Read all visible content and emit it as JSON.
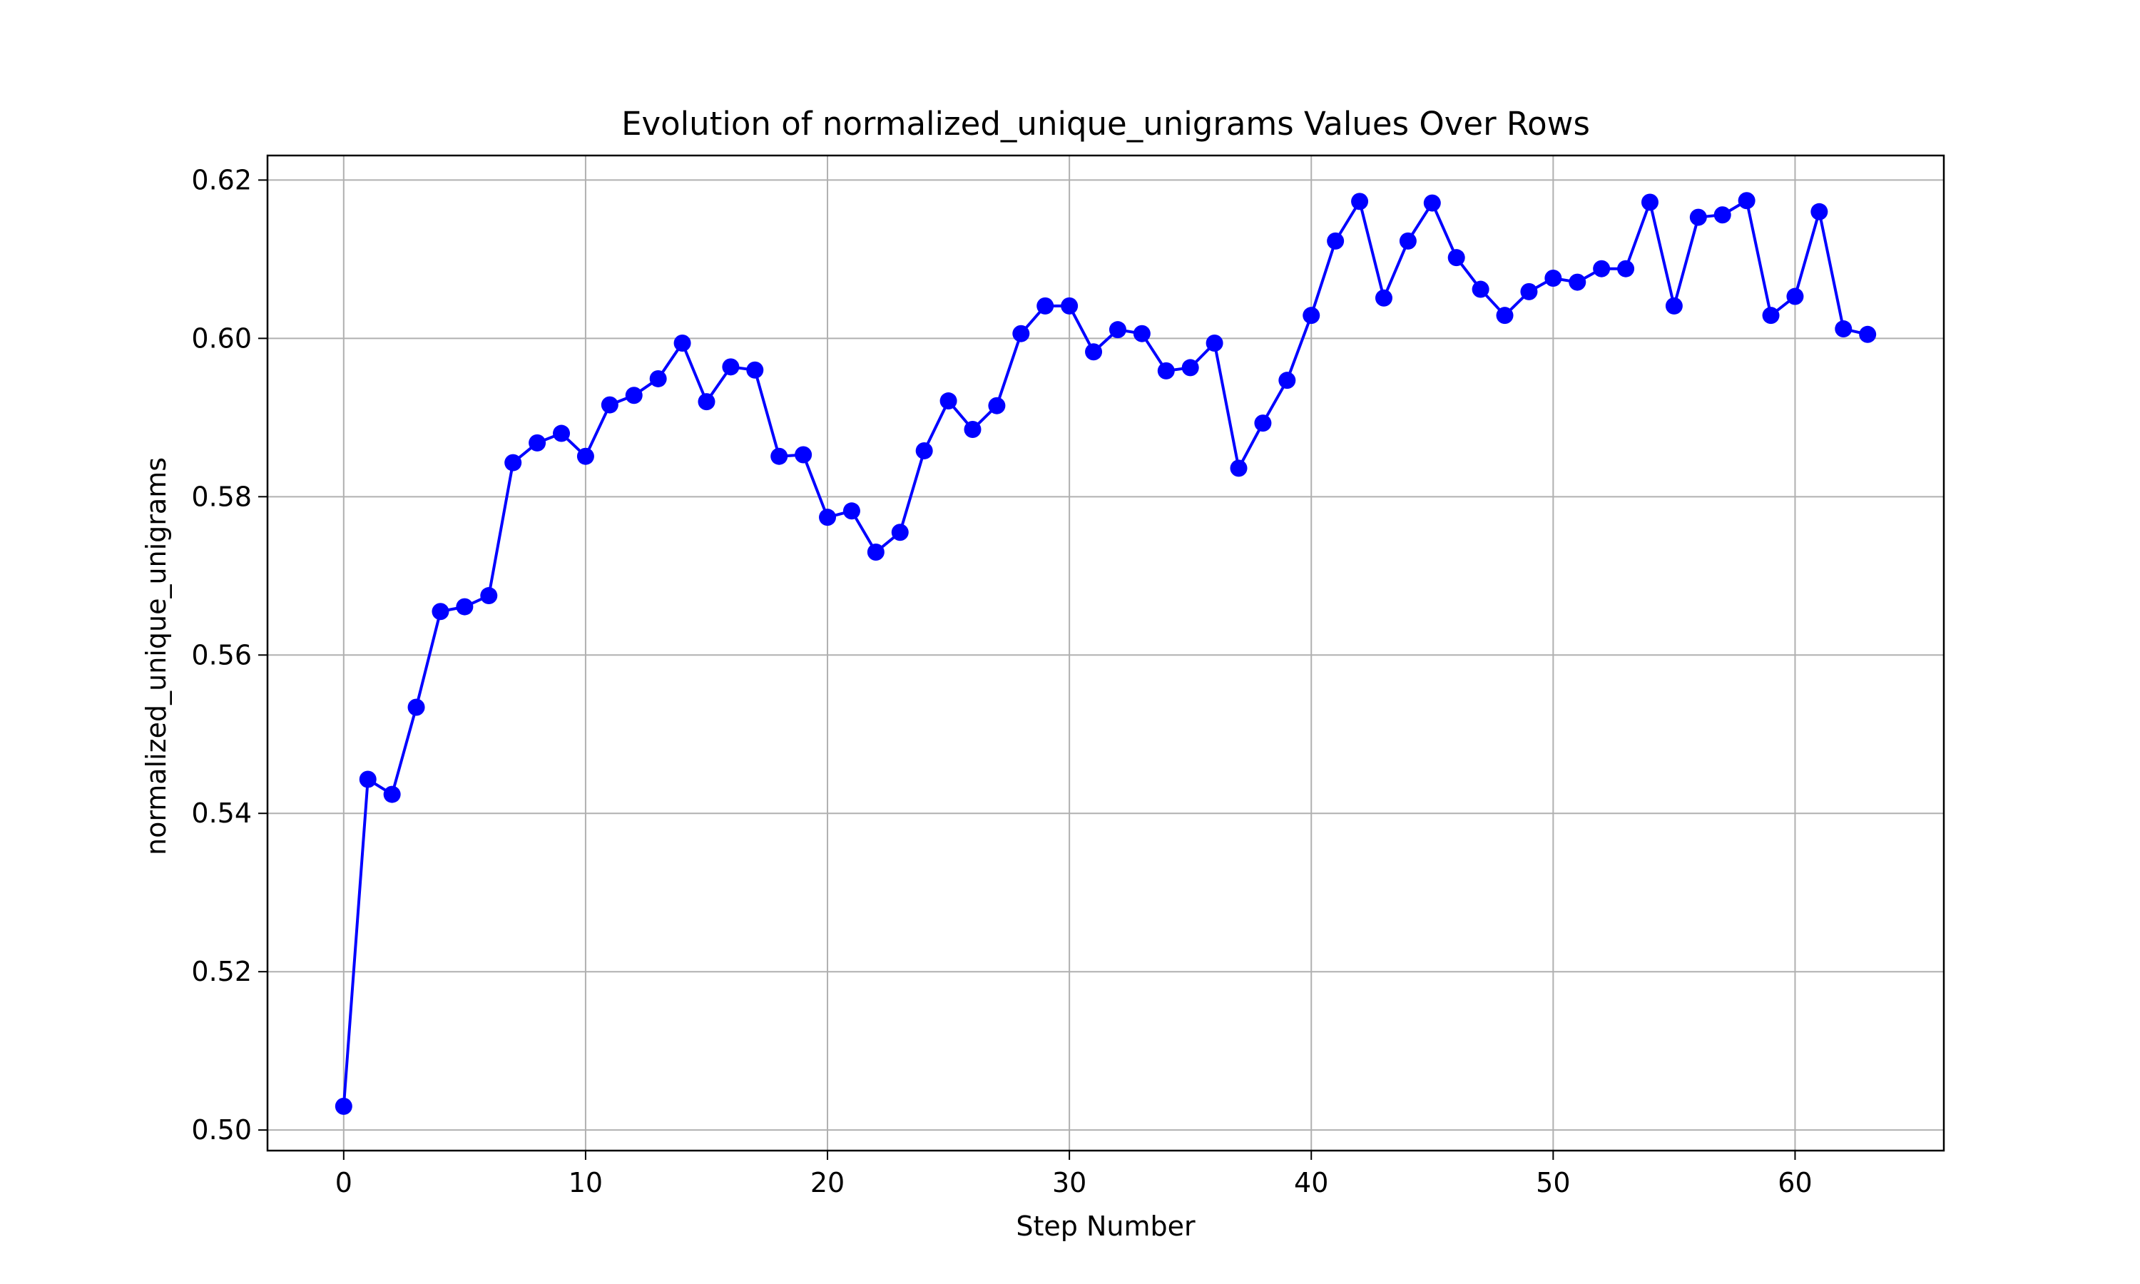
{
  "chart_data": {
    "type": "line",
    "title": "Evolution of normalized_unique_unigrams Values Over Rows",
    "xlabel": "Step Number",
    "ylabel": "normalized_unique_unigrams",
    "xlim": [
      -3.15,
      66.15
    ],
    "ylim": [
      0.4974,
      0.6231
    ],
    "xticks": [
      0,
      10,
      20,
      30,
      40,
      50,
      60
    ],
    "yticks": [
      0.5,
      0.52,
      0.54,
      0.56,
      0.58,
      0.6,
      0.62
    ],
    "grid": true,
    "legend": "none",
    "series": [
      {
        "color": "#0000ff",
        "marker": "circle",
        "x": [
          0,
          1,
          2,
          3,
          4,
          5,
          6,
          7,
          8,
          9,
          10,
          11,
          12,
          13,
          14,
          15,
          16,
          17,
          18,
          19,
          20,
          21,
          22,
          23,
          24,
          25,
          26,
          27,
          28,
          29,
          30,
          31,
          32,
          33,
          34,
          35,
          36,
          37,
          38,
          39,
          40,
          41,
          42,
          43,
          44,
          45,
          46,
          47,
          48,
          49,
          50,
          51,
          52,
          53,
          54,
          55,
          56,
          57,
          58,
          59,
          60,
          61,
          62,
          63
        ],
        "y": [
          0.503,
          0.5443,
          0.5424,
          0.5534,
          0.5655,
          0.5661,
          0.5675,
          0.5843,
          0.5868,
          0.588,
          0.5851,
          0.5916,
          0.5928,
          0.5949,
          0.5994,
          0.592,
          0.5964,
          0.596,
          0.5851,
          0.5853,
          0.5774,
          0.5782,
          0.573,
          0.5755,
          0.5858,
          0.5921,
          0.5885,
          0.5915,
          0.6006,
          0.6041,
          0.6041,
          0.5983,
          0.6011,
          0.6006,
          0.5959,
          0.5963,
          0.5994,
          0.5836,
          0.5893,
          0.5947,
          0.6029,
          0.6123,
          0.6173,
          0.6051,
          0.6123,
          0.6171,
          0.6102,
          0.6062,
          0.6029,
          0.6059,
          0.6076,
          0.6071,
          0.6088,
          0.6088,
          0.6172,
          0.6041,
          0.6153,
          0.6156,
          0.6174,
          0.6029,
          0.6053,
          0.616,
          0.6012,
          0.6005
        ]
      }
    ]
  }
}
